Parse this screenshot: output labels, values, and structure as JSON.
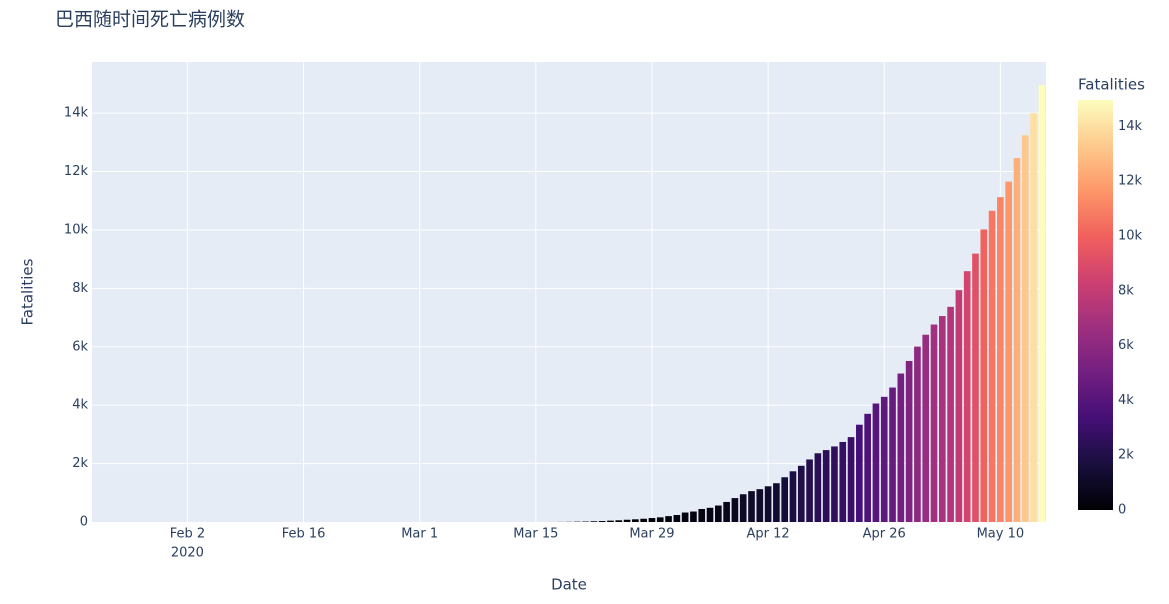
{
  "chart_data": {
    "type": "bar",
    "title": "巴西随时间死亡病例数",
    "x_label": "Date",
    "y_label": "Fatalities",
    "x": [
      "2020-01-22",
      "2020-01-23",
      "2020-01-24",
      "2020-01-25",
      "2020-01-26",
      "2020-01-27",
      "2020-01-28",
      "2020-01-29",
      "2020-01-30",
      "2020-01-31",
      "2020-02-01",
      "2020-02-02",
      "2020-02-03",
      "2020-02-04",
      "2020-02-05",
      "2020-02-06",
      "2020-02-07",
      "2020-02-08",
      "2020-02-09",
      "2020-02-10",
      "2020-02-11",
      "2020-02-12",
      "2020-02-13",
      "2020-02-14",
      "2020-02-15",
      "2020-02-16",
      "2020-02-17",
      "2020-02-18",
      "2020-02-19",
      "2020-02-20",
      "2020-02-21",
      "2020-02-22",
      "2020-02-23",
      "2020-02-24",
      "2020-02-25",
      "2020-02-26",
      "2020-02-27",
      "2020-02-28",
      "2020-02-29",
      "2020-03-01",
      "2020-03-02",
      "2020-03-03",
      "2020-03-04",
      "2020-03-05",
      "2020-03-06",
      "2020-03-07",
      "2020-03-08",
      "2020-03-09",
      "2020-03-10",
      "2020-03-11",
      "2020-03-12",
      "2020-03-13",
      "2020-03-14",
      "2020-03-15",
      "2020-03-16",
      "2020-03-17",
      "2020-03-18",
      "2020-03-19",
      "2020-03-20",
      "2020-03-21",
      "2020-03-22",
      "2020-03-23",
      "2020-03-24",
      "2020-03-25",
      "2020-03-26",
      "2020-03-27",
      "2020-03-28",
      "2020-03-29",
      "2020-03-30",
      "2020-03-31",
      "2020-04-01",
      "2020-04-02",
      "2020-04-03",
      "2020-04-04",
      "2020-04-05",
      "2020-04-06",
      "2020-04-07",
      "2020-04-08",
      "2020-04-09",
      "2020-04-10",
      "2020-04-11",
      "2020-04-12",
      "2020-04-13",
      "2020-04-14",
      "2020-04-15",
      "2020-04-16",
      "2020-04-17",
      "2020-04-18",
      "2020-04-19",
      "2020-04-20",
      "2020-04-21",
      "2020-04-22",
      "2020-04-23",
      "2020-04-24",
      "2020-04-25",
      "2020-04-26",
      "2020-04-27",
      "2020-04-28",
      "2020-04-29",
      "2020-04-30",
      "2020-05-01",
      "2020-05-02",
      "2020-05-03",
      "2020-05-04",
      "2020-05-05",
      "2020-05-06",
      "2020-05-07",
      "2020-05-08",
      "2020-05-09",
      "2020-05-10",
      "2020-05-11",
      "2020-05-12",
      "2020-05-13",
      "2020-05-14",
      "2020-05-15"
    ],
    "values": [
      0,
      0,
      0,
      0,
      0,
      0,
      0,
      0,
      0,
      0,
      0,
      0,
      0,
      0,
      0,
      0,
      0,
      0,
      0,
      0,
      0,
      0,
      0,
      0,
      0,
      0,
      0,
      0,
      0,
      0,
      0,
      0,
      0,
      0,
      0,
      0,
      0,
      0,
      0,
      0,
      0,
      0,
      0,
      0,
      0,
      0,
      0,
      0,
      0,
      0,
      0,
      0,
      0,
      0,
      0,
      1,
      3,
      6,
      11,
      15,
      25,
      34,
      46,
      59,
      77,
      92,
      111,
      136,
      159,
      201,
      240,
      324,
      359,
      445,
      486,
      564,
      686,
      819,
      950,
      1057,
      1124,
      1223,
      1328,
      1532,
      1736,
      1924,
      2141,
      2354,
      2462,
      2587,
      2741,
      2906,
      3331,
      3704,
      4057,
      4286,
      4603,
      5083,
      5513,
      6006,
      6412,
      6761,
      7051,
      7367,
      7938,
      8588,
      9190,
      10017,
      10656,
      11123,
      11653,
      12461,
      13240,
      13999,
      14962
    ],
    "xlim": [
      "2020-01-21T12:00Z",
      "2020-05-15T12:00Z"
    ],
    "xticks": [
      {
        "value": "2020-02-02",
        "label": "Feb 2"
      },
      {
        "value": "2020-02-16",
        "label": "Feb 16"
      },
      {
        "value": "2020-03-01",
        "label": "Mar 1"
      },
      {
        "value": "2020-03-15",
        "label": "Mar 15"
      },
      {
        "value": "2020-03-29",
        "label": "Mar 29"
      },
      {
        "value": "2020-04-12",
        "label": "Apr 12"
      },
      {
        "value": "2020-04-26",
        "label": "Apr 26"
      },
      {
        "value": "2020-05-10",
        "label": "May 10"
      }
    ],
    "xtick_year": "2020",
    "ylim": [
      0,
      15750
    ],
    "yticks": [
      0,
      {
        "value": 2000,
        "label": "2k"
      },
      {
        "value": 4000,
        "label": "4k"
      },
      {
        "value": 6000,
        "label": "6k"
      },
      {
        "value": 8000,
        "label": "8k"
      },
      {
        "value": 10000,
        "label": "10k"
      },
      {
        "value": 12000,
        "label": "12k"
      },
      {
        "value": 14000,
        "label": "14k"
      }
    ],
    "grid": true,
    "colorbar_title": "Fatalities",
    "colorscale": [
      "#000004",
      "#180f3d",
      "#440f76",
      "#721f81",
      "#9e2f7f",
      "#cd4071",
      "#f1605d",
      "#fd9668",
      "#feca8d",
      "#fcfdbf"
    ]
  }
}
